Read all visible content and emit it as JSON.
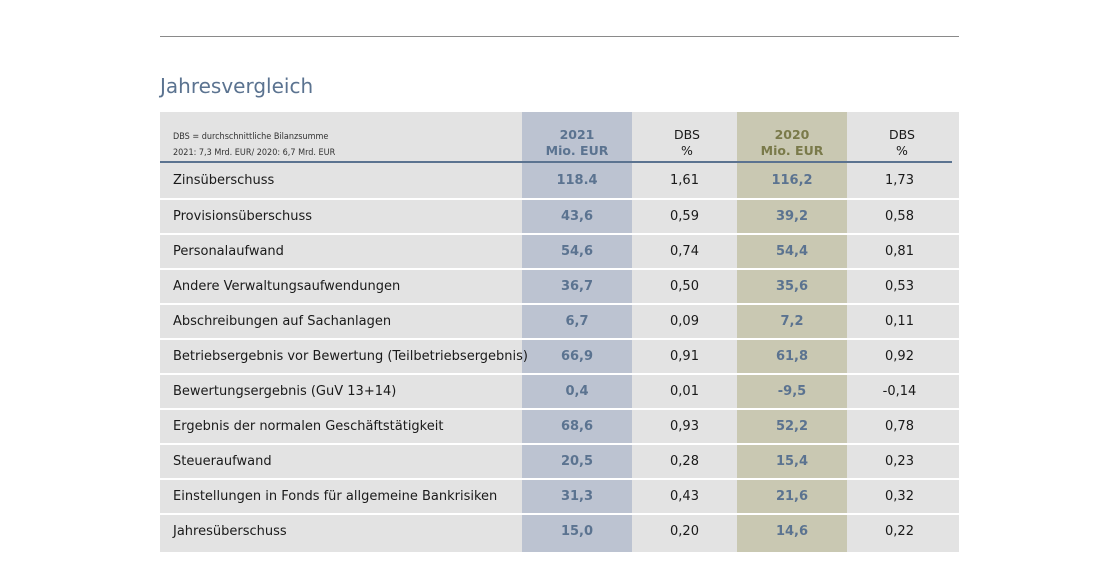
{
  "page": {
    "title": "Jahresvergleich"
  },
  "colors": {
    "title": "#5b7390",
    "band_2021": "#bcc3d1",
    "band_2020": "#c9c8b2",
    "text_2021": "#5b7390",
    "text_2020": "#7a7a4a",
    "table_bg": "#e3e3e3"
  },
  "table": {
    "note_line1": "DBS = durchschnittliche Bilanzsumme",
    "note_line2": "2021: 7,3 Mrd. EUR/ 2020: 6,7 Mrd. EUR",
    "headers": {
      "y2021": "2021",
      "y2021_unit": "Mio. EUR",
      "dbs21": "DBS",
      "dbs21_unit": "%",
      "y2020": "2020",
      "y2020_unit": "Mio. EUR",
      "dbs20": "DBS",
      "dbs20_unit": "%"
    },
    "rows": [
      {
        "label": "Zinsüberschuss",
        "v2021": "118.4",
        "dbs2021": "1,61",
        "v2020": "116,2",
        "dbs2020": "1,73"
      },
      {
        "label": "Provisionsüberschuss",
        "v2021": "43,6",
        "dbs2021": "0,59",
        "v2020": "39,2",
        "dbs2020": "0,58"
      },
      {
        "label": "Personalaufwand",
        "v2021": "54,6",
        "dbs2021": "0,74",
        "v2020": "54,4",
        "dbs2020": "0,81"
      },
      {
        "label": "Andere Verwaltungsaufwendungen",
        "v2021": "36,7",
        "dbs2021": "0,50",
        "v2020": "35,6",
        "dbs2020": "0,53"
      },
      {
        "label": "Abschreibungen auf Sachanlagen",
        "v2021": "6,7",
        "dbs2021": "0,09",
        "v2020": "7,2",
        "dbs2020": "0,11"
      },
      {
        "label": "Betriebsergebnis vor Bewertung (Teilbetriebsergebnis)",
        "v2021": "66,9",
        "dbs2021": "0,91",
        "v2020": "61,8",
        "dbs2020": "0,92"
      },
      {
        "label": "Bewertungsergebnis (GuV 13+14)",
        "v2021": "0,4",
        "dbs2021": "0,01",
        "v2020": "-9,5",
        "dbs2020": "-0,14"
      },
      {
        "label": "Ergebnis der normalen Geschäftstätigkeit",
        "v2021": "68,6",
        "dbs2021": "0,93",
        "v2020": "52,2",
        "dbs2020": "0,78"
      },
      {
        "label": "Steueraufwand",
        "v2021": "20,5",
        "dbs2021": "0,28",
        "v2020": "15,4",
        "dbs2020": "0,23"
      },
      {
        "label": "Einstellungen in Fonds für allgemeine Bankrisiken",
        "v2021": "31,3",
        "dbs2021": "0,43",
        "v2020": "21,6",
        "dbs2020": "0,32"
      },
      {
        "label": "Jahresüberschuss",
        "v2021": "15,0",
        "dbs2021": "0,20",
        "v2020": "14,6",
        "dbs2020": "0,22"
      }
    ]
  }
}
